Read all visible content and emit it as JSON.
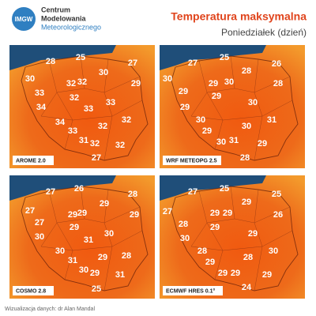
{
  "header": {
    "logo": "IMGW",
    "org": [
      "Centrum",
      "Modelowania",
      "Meteorologicznego"
    ],
    "title": "Temperatura maksymalna",
    "subtitle": "Poniedziałek (dzień)"
  },
  "panels": [
    {
      "model": "AROME 2.0",
      "temps": [
        28,
        25,
        27,
        30,
        32,
        32,
        30,
        29,
        33,
        32,
        34,
        33,
        33,
        34,
        32,
        33,
        32,
        31,
        32,
        32,
        27
      ]
    },
    {
      "model": "WRF METEOPG 2.5",
      "temps": [
        27,
        25,
        26,
        28,
        30,
        29,
        30,
        28,
        29,
        29,
        29,
        30,
        30,
        31,
        30,
        29,
        30,
        31,
        29,
        28
      ]
    },
    {
      "model": "COSMO 2.8",
      "temps": [
        27,
        26,
        28,
        27,
        29,
        29,
        29,
        29,
        27,
        29,
        30,
        31,
        30,
        30,
        28,
        31,
        29,
        30,
        29,
        31,
        25
      ]
    },
    {
      "model": "ECMWF HRES 0.1°",
      "temps": [
        27,
        25,
        25,
        29,
        27,
        29,
        29,
        26,
        28,
        29,
        30,
        29,
        28,
        30,
        28,
        29,
        29,
        29,
        29,
        24
      ]
    }
  ],
  "footer": "Wizualizacja danych: dr Alan Mandal"
}
